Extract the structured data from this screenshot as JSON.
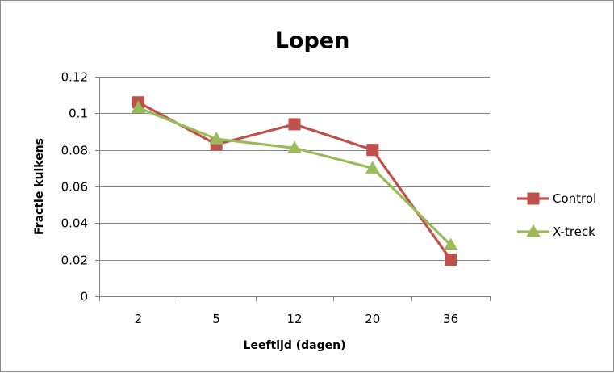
{
  "chart_data": {
    "type": "line",
    "title": "Lopen",
    "xlabel": "Leeftijd (dagen)",
    "ylabel": "Fractie kuikens",
    "categories": [
      "2",
      "5",
      "12",
      "20",
      "36"
    ],
    "ylim": [
      0,
      0.12
    ],
    "yticks": [
      0,
      0.02,
      0.04,
      0.06,
      0.08,
      0.1,
      0.12
    ],
    "ytick_labels": [
      "0",
      "0.02",
      "0.04",
      "0.06",
      "0.08",
      "0.1",
      "0.12"
    ],
    "grid": true,
    "legend_position": "right",
    "series": [
      {
        "name": "Control",
        "values": [
          0.106,
          0.083,
          0.094,
          0.08,
          0.02
        ],
        "color": "#c0504d",
        "marker": "square"
      },
      {
        "name": "X-treck",
        "values": [
          0.103,
          0.086,
          0.081,
          0.07,
          0.028
        ],
        "color": "#9bbb59",
        "marker": "triangle"
      }
    ]
  }
}
